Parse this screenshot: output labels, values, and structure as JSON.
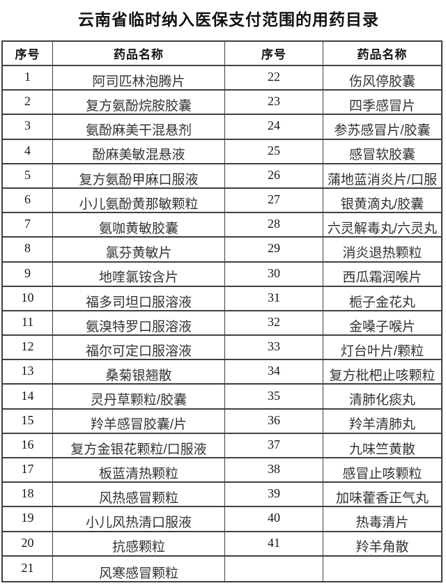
{
  "title": "云南省临时纳入医保支付范围的用药目录",
  "colors": {
    "page_bg": "#ffffff",
    "line": "#3f3f3f",
    "title_text": "#111111",
    "header_text": "#141414",
    "number_text": "#161616",
    "name_text": "#333333"
  },
  "table": {
    "headers": [
      "序号",
      "药品名称",
      "序号",
      "药品名称"
    ],
    "left_rows": [
      {
        "no": "1",
        "name": "阿司匹林泡腾片"
      },
      {
        "no": "2",
        "name": "复方氨酚烷胺胶囊"
      },
      {
        "no": "3",
        "name": "氨酚麻美干混悬剂"
      },
      {
        "no": "4",
        "name": "酚麻美敏混悬液"
      },
      {
        "no": "5",
        "name": "复方氨酚甲麻口服液"
      },
      {
        "no": "6",
        "name": "小儿氨酚黄那敏颗粒"
      },
      {
        "no": "7",
        "name": "氨咖黄敏胶囊"
      },
      {
        "no": "8",
        "name": "氯芬黄敏片"
      },
      {
        "no": "9",
        "name": "地喹氯铵含片"
      },
      {
        "no": "10",
        "name": "福多司坦口服溶液"
      },
      {
        "no": "11",
        "name": "氨溴特罗口服溶液"
      },
      {
        "no": "12",
        "name": "福尔可定口服溶液"
      },
      {
        "no": "13",
        "name": "桑菊银翘散"
      },
      {
        "no": "14",
        "name": "灵丹草颗粒/胶囊"
      },
      {
        "no": "15",
        "name": "羚羊感冒胶囊/片"
      },
      {
        "no": "16",
        "name": "复方金银花颗粒/口服液"
      },
      {
        "no": "17",
        "name": "板蓝清热颗粒"
      },
      {
        "no": "18",
        "name": "风热感冒颗粒"
      },
      {
        "no": "19",
        "name": "小儿风热清口服液"
      },
      {
        "no": "20",
        "name": "抗感颗粒"
      },
      {
        "no": "21",
        "name": "风寒感冒颗粒"
      }
    ],
    "right_rows": [
      {
        "no": "22",
        "name": "伤风停胶囊"
      },
      {
        "no": "23",
        "name": "四季感冒片"
      },
      {
        "no": "24",
        "name": "参苏感冒片/胶囊"
      },
      {
        "no": "25",
        "name": "感冒软胶囊"
      },
      {
        "no": "26",
        "name": "蒲地蓝消炎片/口服"
      },
      {
        "no": "27",
        "name": "银黄滴丸/胶囊"
      },
      {
        "no": "28",
        "name": "六灵解毒丸/六灵丸"
      },
      {
        "no": "29",
        "name": "消炎退热颗粒"
      },
      {
        "no": "30",
        "name": "西瓜霜润喉片"
      },
      {
        "no": "31",
        "name": "栀子金花丸"
      },
      {
        "no": "32",
        "name": "金嗓子喉片"
      },
      {
        "no": "33",
        "name": "灯台叶片/颗粒"
      },
      {
        "no": "34",
        "name": "复方枇杷止咳颗粒"
      },
      {
        "no": "35",
        "name": "清肺化痰丸"
      },
      {
        "no": "36",
        "name": "羚羊清肺丸"
      },
      {
        "no": "37",
        "name": "九味竺黄散"
      },
      {
        "no": "38",
        "name": "感冒止咳颗粒"
      },
      {
        "no": "39",
        "name": "加味藿香正气丸"
      },
      {
        "no": "40",
        "name": "热毒清片"
      },
      {
        "no": "41",
        "name": "羚羊角散"
      },
      {
        "no": "",
        "name": ""
      }
    ]
  }
}
